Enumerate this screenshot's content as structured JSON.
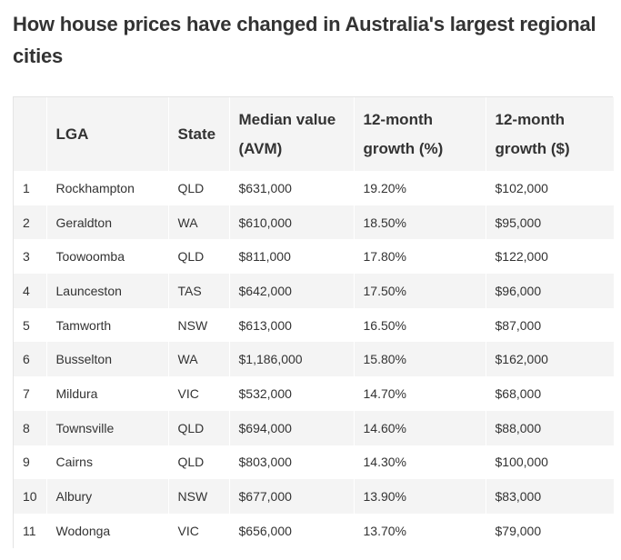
{
  "title": "How house prices have changed in Australia's largest regional cities",
  "table": {
    "headers": {
      "rank": "",
      "lga": "LGA",
      "state": "State",
      "median": "Median value (AVM)",
      "growth_pct": "12-month growth (%)",
      "growth_dol": "12-month growth ($)"
    },
    "rows": [
      {
        "rank": "1",
        "lga": "Rockhampton",
        "state": "QLD",
        "median": "$631,000",
        "growth_pct": "19.20%",
        "growth_dol": "$102,000"
      },
      {
        "rank": "2",
        "lga": "Geraldton",
        "state": "WA",
        "median": "$610,000",
        "growth_pct": "18.50%",
        "growth_dol": "$95,000"
      },
      {
        "rank": "3",
        "lga": "Toowoomba",
        "state": "QLD",
        "median": "$811,000",
        "growth_pct": "17.80%",
        "growth_dol": "$122,000"
      },
      {
        "rank": "4",
        "lga": "Launceston",
        "state": "TAS",
        "median": "$642,000",
        "growth_pct": "17.50%",
        "growth_dol": "$96,000"
      },
      {
        "rank": "5",
        "lga": "Tamworth",
        "state": "NSW",
        "median": "$613,000",
        "growth_pct": "16.50%",
        "growth_dol": "$87,000"
      },
      {
        "rank": "6",
        "lga": "Busselton",
        "state": "WA",
        "median": "$1,186,000",
        "growth_pct": "15.80%",
        "growth_dol": "$162,000"
      },
      {
        "rank": "7",
        "lga": "Mildura",
        "state": "VIC",
        "median": "$532,000",
        "growth_pct": "14.70%",
        "growth_dol": "$68,000"
      },
      {
        "rank": "8",
        "lga": "Townsville",
        "state": "QLD",
        "median": "$694,000",
        "growth_pct": "14.60%",
        "growth_dol": "$88,000"
      },
      {
        "rank": "9",
        "lga": "Cairns",
        "state": "QLD",
        "median": "$803,000",
        "growth_pct": "14.30%",
        "growth_dol": "$100,000"
      },
      {
        "rank": "10",
        "lga": "Albury",
        "state": "NSW",
        "median": "$677,000",
        "growth_pct": "13.90%",
        "growth_dol": "$83,000"
      },
      {
        "rank": "11",
        "lga": "Wodonga",
        "state": "VIC",
        "median": "$656,000",
        "growth_pct": "13.70%",
        "growth_dol": "$79,000"
      }
    ]
  }
}
